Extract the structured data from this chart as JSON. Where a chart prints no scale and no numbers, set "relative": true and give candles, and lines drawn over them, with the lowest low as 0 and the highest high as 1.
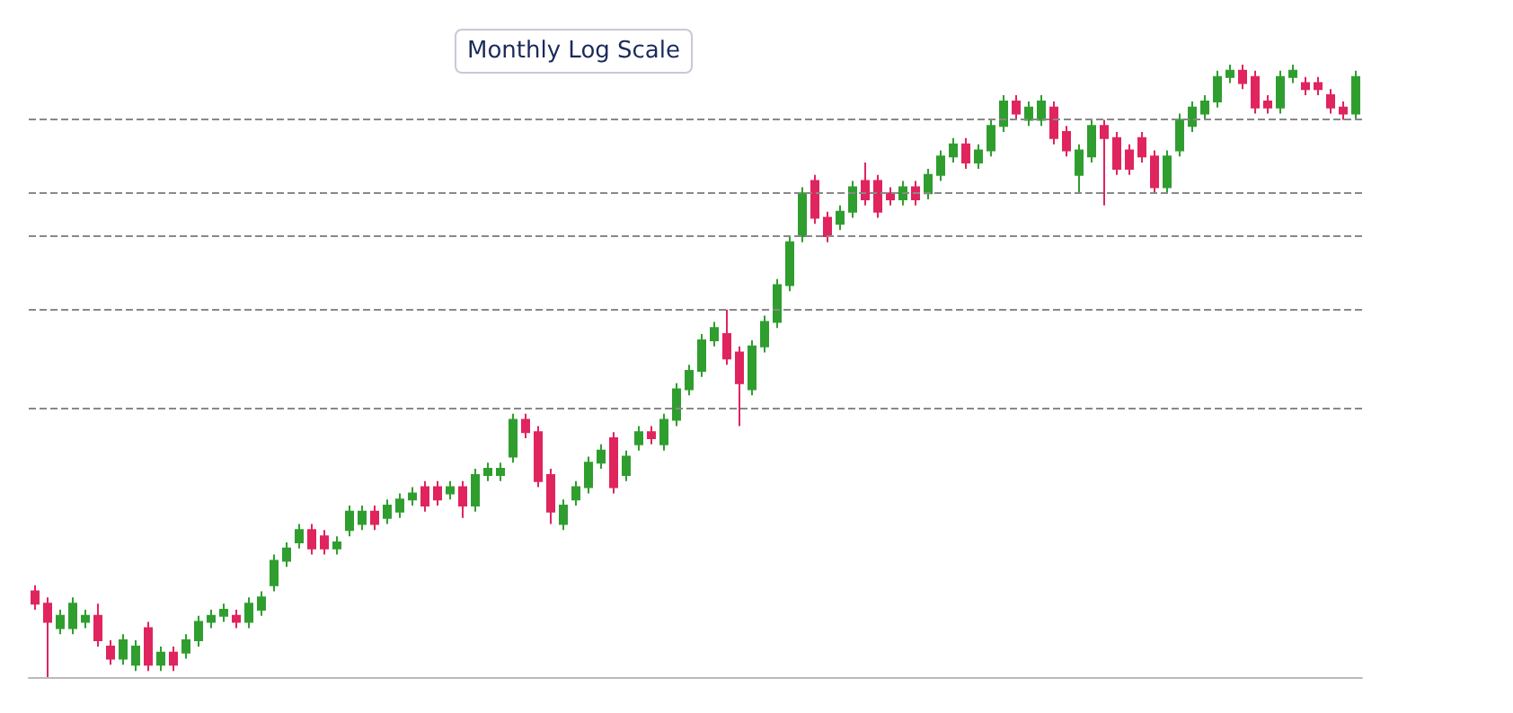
{
  "chart_data": {
    "type": "candlestick",
    "relative": true,
    "annotations": [
      "Monthly Log Scale"
    ],
    "categories": [
      null,
      null,
      null,
      null,
      null,
      null,
      null,
      null,
      null,
      null,
      null,
      null,
      null,
      null,
      null,
      null,
      null,
      null,
      null,
      null,
      null,
      null,
      null,
      null,
      null,
      null,
      null,
      null,
      null,
      null,
      null,
      null,
      null,
      null,
      null,
      null,
      null,
      null,
      null,
      null,
      null,
      null,
      null,
      null,
      null,
      null,
      null,
      null,
      null,
      null,
      null,
      null,
      null,
      null,
      null,
      null,
      null,
      null,
      null,
      null,
      null,
      null,
      null,
      null,
      null,
      null,
      null,
      null,
      null,
      null,
      null,
      null,
      null,
      null,
      null,
      null,
      null,
      null,
      null,
      null,
      null,
      null,
      null,
      null,
      null,
      null,
      null,
      null,
      null,
      null,
      null,
      null,
      null,
      null,
      null,
      null,
      null,
      null,
      null,
      null,
      null,
      null,
      null,
      null,
      null,
      null
    ],
    "ohlc": [
      [
        0.14,
        0.15,
        0.11,
        0.12
      ],
      [
        0.12,
        0.13,
        0.0,
        0.09
      ],
      [
        0.08,
        0.11,
        0.07,
        0.1
      ],
      [
        0.08,
        0.13,
        0.07,
        0.12
      ],
      [
        0.09,
        0.11,
        0.08,
        0.1
      ],
      [
        0.1,
        0.12,
        0.05,
        0.06
      ],
      [
        0.05,
        0.06,
        0.02,
        0.03
      ],
      [
        0.03,
        0.07,
        0.02,
        0.06
      ],
      [
        0.02,
        0.06,
        0.01,
        0.05
      ],
      [
        0.08,
        0.09,
        0.01,
        0.02
      ],
      [
        0.02,
        0.05,
        0.01,
        0.04
      ],
      [
        0.04,
        0.05,
        0.01,
        0.02
      ],
      [
        0.04,
        0.07,
        0.03,
        0.06
      ],
      [
        0.06,
        0.1,
        0.05,
        0.09
      ],
      [
        0.09,
        0.11,
        0.08,
        0.1
      ],
      [
        0.1,
        0.12,
        0.09,
        0.11
      ],
      [
        0.1,
        0.11,
        0.08,
        0.09
      ],
      [
        0.09,
        0.13,
        0.08,
        0.12
      ],
      [
        0.11,
        0.14,
        0.1,
        0.13
      ],
      [
        0.15,
        0.2,
        0.14,
        0.19
      ],
      [
        0.19,
        0.22,
        0.18,
        0.21
      ],
      [
        0.22,
        0.25,
        0.21,
        0.24
      ],
      [
        0.24,
        0.25,
        0.2,
        0.21
      ],
      [
        0.23,
        0.24,
        0.2,
        0.21
      ],
      [
        0.21,
        0.23,
        0.2,
        0.22
      ],
      [
        0.24,
        0.28,
        0.23,
        0.27
      ],
      [
        0.25,
        0.28,
        0.24,
        0.27
      ],
      [
        0.27,
        0.28,
        0.24,
        0.25
      ],
      [
        0.26,
        0.29,
        0.25,
        0.28
      ],
      [
        0.27,
        0.3,
        0.26,
        0.29
      ],
      [
        0.29,
        0.31,
        0.28,
        0.3
      ],
      [
        0.31,
        0.32,
        0.27,
        0.28
      ],
      [
        0.31,
        0.32,
        0.28,
        0.29
      ],
      [
        0.3,
        0.32,
        0.29,
        0.31
      ],
      [
        0.31,
        0.32,
        0.26,
        0.28
      ],
      [
        0.28,
        0.34,
        0.27,
        0.33
      ],
      [
        0.33,
        0.35,
        0.32,
        0.34
      ],
      [
        0.33,
        0.35,
        0.32,
        0.34
      ],
      [
        0.36,
        0.43,
        0.35,
        0.42
      ],
      [
        0.42,
        0.43,
        0.39,
        0.4
      ],
      [
        0.4,
        0.41,
        0.31,
        0.32
      ],
      [
        0.33,
        0.34,
        0.25,
        0.27
      ],
      [
        0.25,
        0.29,
        0.24,
        0.28
      ],
      [
        0.29,
        0.32,
        0.28,
        0.31
      ],
      [
        0.31,
        0.36,
        0.3,
        0.35
      ],
      [
        0.35,
        0.38,
        0.34,
        0.37
      ],
      [
        0.39,
        0.4,
        0.3,
        0.31
      ],
      [
        0.33,
        0.37,
        0.32,
        0.36
      ],
      [
        0.38,
        0.41,
        0.37,
        0.4
      ],
      [
        0.4,
        0.41,
        0.38,
        0.39
      ],
      [
        0.38,
        0.43,
        0.37,
        0.42
      ],
      [
        0.42,
        0.48,
        0.41,
        0.47
      ],
      [
        0.47,
        0.51,
        0.46,
        0.5
      ],
      [
        0.5,
        0.56,
        0.49,
        0.55
      ],
      [
        0.55,
        0.58,
        0.54,
        0.57
      ],
      [
        0.56,
        0.6,
        0.51,
        0.52
      ],
      [
        0.53,
        0.54,
        0.41,
        0.48
      ],
      [
        0.47,
        0.55,
        0.46,
        0.54
      ],
      [
        0.54,
        0.59,
        0.53,
        0.58
      ],
      [
        0.58,
        0.65,
        0.57,
        0.64
      ],
      [
        0.64,
        0.72,
        0.63,
        0.71
      ],
      [
        0.72,
        0.8,
        0.71,
        0.79
      ],
      [
        0.81,
        0.82,
        0.74,
        0.75
      ],
      [
        0.75,
        0.76,
        0.71,
        0.72
      ],
      [
        0.74,
        0.77,
        0.73,
        0.76
      ],
      [
        0.76,
        0.81,
        0.75,
        0.8
      ],
      [
        0.81,
        0.84,
        0.77,
        0.78
      ],
      [
        0.81,
        0.82,
        0.75,
        0.76
      ],
      [
        0.79,
        0.8,
        0.77,
        0.78
      ],
      [
        0.78,
        0.81,
        0.77,
        0.8
      ],
      [
        0.8,
        0.81,
        0.77,
        0.78
      ],
      [
        0.79,
        0.83,
        0.78,
        0.82
      ],
      [
        0.82,
        0.86,
        0.81,
        0.85
      ],
      [
        0.85,
        0.88,
        0.84,
        0.87
      ],
      [
        0.87,
        0.88,
        0.83,
        0.84
      ],
      [
        0.84,
        0.87,
        0.83,
        0.86
      ],
      [
        0.86,
        0.91,
        0.85,
        0.9
      ],
      [
        0.9,
        0.95,
        0.89,
        0.94
      ],
      [
        0.94,
        0.95,
        0.91,
        0.92
      ],
      [
        0.91,
        0.94,
        0.9,
        0.93
      ],
      [
        0.91,
        0.95,
        0.9,
        0.94
      ],
      [
        0.93,
        0.94,
        0.87,
        0.88
      ],
      [
        0.89,
        0.9,
        0.85,
        0.86
      ],
      [
        0.82,
        0.87,
        0.79,
        0.86
      ],
      [
        0.85,
        0.91,
        0.84,
        0.9
      ],
      [
        0.9,
        0.91,
        0.77,
        0.88
      ],
      [
        0.88,
        0.89,
        0.82,
        0.83
      ],
      [
        0.86,
        0.87,
        0.82,
        0.83
      ],
      [
        0.88,
        0.89,
        0.84,
        0.85
      ],
      [
        0.85,
        0.86,
        0.79,
        0.8
      ],
      [
        0.8,
        0.86,
        0.79,
        0.85
      ],
      [
        0.86,
        0.92,
        0.85,
        0.91
      ],
      [
        0.9,
        0.94,
        0.89,
        0.93
      ],
      [
        0.92,
        0.95,
        0.91,
        0.94
      ],
      [
        0.94,
        0.99,
        0.93,
        0.98
      ],
      [
        0.98,
        1.0,
        0.97,
        0.99
      ],
      [
        0.99,
        1.0,
        0.96,
        0.97
      ],
      [
        0.98,
        0.99,
        0.92,
        0.93
      ],
      [
        0.94,
        0.95,
        0.92,
        0.93
      ],
      [
        0.93,
        0.99,
        0.92,
        0.98
      ],
      [
        0.98,
        1.0,
        0.97,
        0.99
      ],
      [
        0.97,
        0.98,
        0.95,
        0.96
      ],
      [
        0.97,
        0.98,
        0.95,
        0.96
      ],
      [
        0.95,
        0.96,
        0.92,
        0.93
      ],
      [
        0.93,
        0.94,
        0.91,
        0.92
      ],
      [
        0.92,
        0.99,
        0.91,
        0.98
      ]
    ],
    "ref_lines": [
      {
        "axis": "y",
        "value": 0.91,
        "color": "#888888",
        "line_style": "dashed"
      },
      {
        "axis": "y",
        "value": 0.79,
        "color": "#888888",
        "line_style": "dashed"
      },
      {
        "axis": "y",
        "value": 0.72,
        "color": "#888888",
        "line_style": "dashed"
      },
      {
        "axis": "y",
        "value": 0.6,
        "color": "#888888",
        "line_style": "dashed"
      },
      {
        "axis": "y",
        "value": 0.44,
        "color": "#888888",
        "line_style": "dashed"
      }
    ],
    "grid": false
  }
}
